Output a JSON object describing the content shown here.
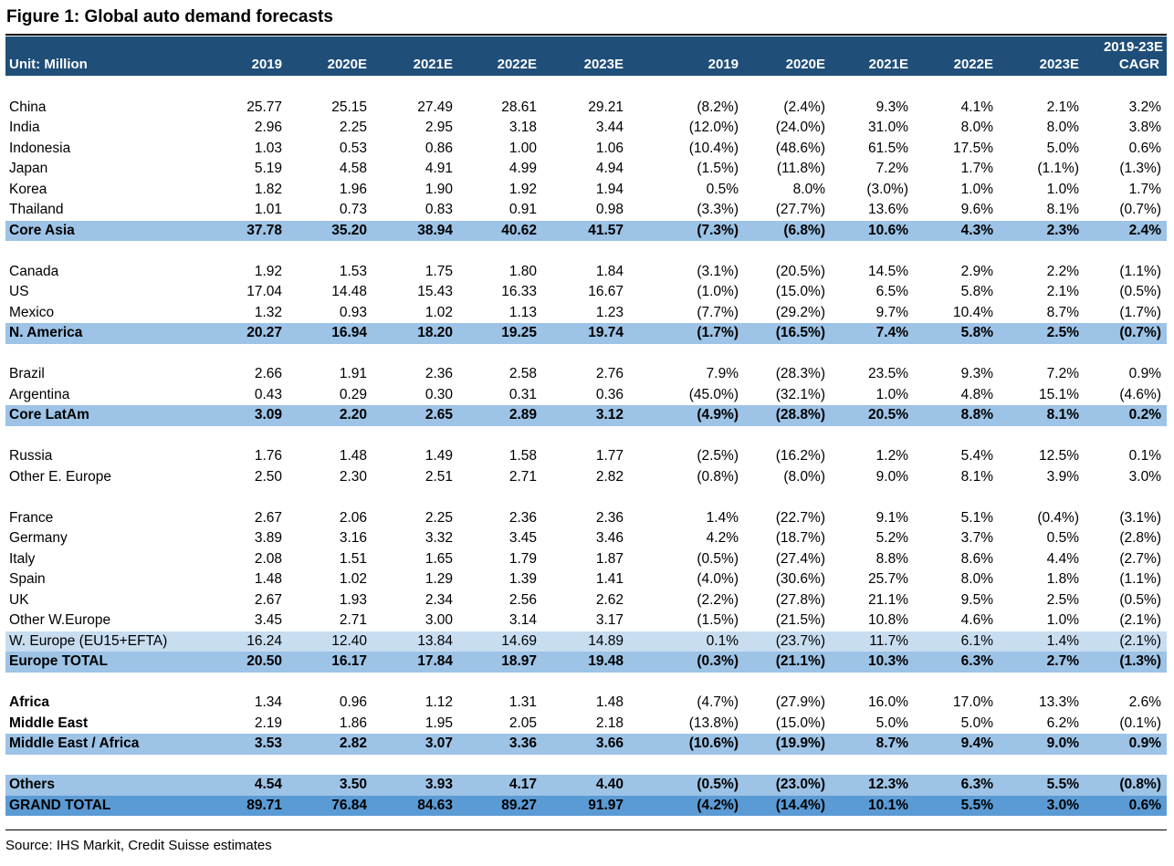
{
  "title": "Figure 1: Global auto demand forecasts",
  "header": {
    "unit_label": "Unit: Million",
    "columns": [
      "2019",
      "2020E",
      "2021E",
      "2022E",
      "2023E",
      "2019",
      "2020E",
      "2021E",
      "2022E",
      "2023E"
    ],
    "cagr_line1": "2019-23E",
    "cagr_line2": "CAGR"
  },
  "rows": [
    {
      "kind": "spacer"
    },
    {
      "kind": "data",
      "name": "China",
      "values": [
        "25.77",
        "25.15",
        "27.49",
        "28.61",
        "29.21",
        "(8.2%)",
        "(2.4%)",
        "9.3%",
        "4.1%",
        "2.1%",
        "3.2%"
      ]
    },
    {
      "kind": "data",
      "name": "India",
      "values": [
        "2.96",
        "2.25",
        "2.95",
        "3.18",
        "3.44",
        "(12.0%)",
        "(24.0%)",
        "31.0%",
        "8.0%",
        "8.0%",
        "3.8%"
      ]
    },
    {
      "kind": "data",
      "name": "Indonesia",
      "values": [
        "1.03",
        "0.53",
        "0.86",
        "1.00",
        "1.06",
        "(10.4%)",
        "(48.6%)",
        "61.5%",
        "17.5%",
        "5.0%",
        "0.6%"
      ]
    },
    {
      "kind": "data",
      "name": "Japan",
      "values": [
        "5.19",
        "4.58",
        "4.91",
        "4.99",
        "4.94",
        "(1.5%)",
        "(11.8%)",
        "7.2%",
        "1.7%",
        "(1.1%)",
        "(1.3%)"
      ]
    },
    {
      "kind": "data",
      "name": "Korea",
      "values": [
        "1.82",
        "1.96",
        "1.90",
        "1.92",
        "1.94",
        "0.5%",
        "8.0%",
        "(3.0%)",
        "1.0%",
        "1.0%",
        "1.7%"
      ]
    },
    {
      "kind": "data",
      "name": "Thailand",
      "values": [
        "1.01",
        "0.73",
        "0.83",
        "0.91",
        "0.98",
        "(3.3%)",
        "(27.7%)",
        "13.6%",
        "9.6%",
        "8.1%",
        "(0.7%)"
      ]
    },
    {
      "kind": "total",
      "name": "Core Asia",
      "values": [
        "37.78",
        "35.20",
        "38.94",
        "40.62",
        "41.57",
        "(7.3%)",
        "(6.8%)",
        "10.6%",
        "4.3%",
        "2.3%",
        "2.4%"
      ]
    },
    {
      "kind": "spacer"
    },
    {
      "kind": "data",
      "name": "Canada",
      "values": [
        "1.92",
        "1.53",
        "1.75",
        "1.80",
        "1.84",
        "(3.1%)",
        "(20.5%)",
        "14.5%",
        "2.9%",
        "2.2%",
        "(1.1%)"
      ]
    },
    {
      "kind": "data",
      "name": "US",
      "values": [
        "17.04",
        "14.48",
        "15.43",
        "16.33",
        "16.67",
        "(1.0%)",
        "(15.0%)",
        "6.5%",
        "5.8%",
        "2.1%",
        "(0.5%)"
      ]
    },
    {
      "kind": "data",
      "name": "Mexico",
      "values": [
        "1.32",
        "0.93",
        "1.02",
        "1.13",
        "1.23",
        "(7.7%)",
        "(29.2%)",
        "9.7%",
        "10.4%",
        "8.7%",
        "(1.7%)"
      ]
    },
    {
      "kind": "total",
      "name": "N. America",
      "values": [
        "20.27",
        "16.94",
        "18.20",
        "19.25",
        "19.74",
        "(1.7%)",
        "(16.5%)",
        "7.4%",
        "5.8%",
        "2.5%",
        "(0.7%)"
      ]
    },
    {
      "kind": "spacer"
    },
    {
      "kind": "data",
      "name": "Brazil",
      "values": [
        "2.66",
        "1.91",
        "2.36",
        "2.58",
        "2.76",
        "7.9%",
        "(28.3%)",
        "23.5%",
        "9.3%",
        "7.2%",
        "0.9%"
      ]
    },
    {
      "kind": "data",
      "name": "Argentina",
      "values": [
        "0.43",
        "0.29",
        "0.30",
        "0.31",
        "0.36",
        "(45.0%)",
        "(32.1%)",
        "1.0%",
        "4.8%",
        "15.1%",
        "(4.6%)"
      ]
    },
    {
      "kind": "total",
      "name": "Core LatAm",
      "values": [
        "3.09",
        "2.20",
        "2.65",
        "2.89",
        "3.12",
        "(4.9%)",
        "(28.8%)",
        "20.5%",
        "8.8%",
        "8.1%",
        "0.2%"
      ]
    },
    {
      "kind": "spacer"
    },
    {
      "kind": "data",
      "name": "Russia",
      "values": [
        "1.76",
        "1.48",
        "1.49",
        "1.58",
        "1.77",
        "(2.5%)",
        "(16.2%)",
        "1.2%",
        "5.4%",
        "12.5%",
        "0.1%"
      ]
    },
    {
      "kind": "data",
      "name": "Other E. Europe",
      "values": [
        "2.50",
        "2.30",
        "2.51",
        "2.71",
        "2.82",
        "(0.8%)",
        "(8.0%)",
        "9.0%",
        "8.1%",
        "3.9%",
        "3.0%"
      ]
    },
    {
      "kind": "spacer"
    },
    {
      "kind": "data",
      "name": "France",
      "values": [
        "2.67",
        "2.06",
        "2.25",
        "2.36",
        "2.36",
        "1.4%",
        "(22.7%)",
        "9.1%",
        "5.1%",
        "(0.4%)",
        "(3.1%)"
      ]
    },
    {
      "kind": "data",
      "name": "Germany",
      "values": [
        "3.89",
        "3.16",
        "3.32",
        "3.45",
        "3.46",
        "4.2%",
        "(18.7%)",
        "5.2%",
        "3.7%",
        "0.5%",
        "(2.8%)"
      ]
    },
    {
      "kind": "data",
      "name": "Italy",
      "values": [
        "2.08",
        "1.51",
        "1.65",
        "1.79",
        "1.87",
        "(0.5%)",
        "(27.4%)",
        "8.8%",
        "8.6%",
        "4.4%",
        "(2.7%)"
      ]
    },
    {
      "kind": "data",
      "name": "Spain",
      "values": [
        "1.48",
        "1.02",
        "1.29",
        "1.39",
        "1.41",
        "(4.0%)",
        "(30.6%)",
        "25.7%",
        "8.0%",
        "1.8%",
        "(1.1%)"
      ]
    },
    {
      "kind": "data",
      "name": "UK",
      "values": [
        "2.67",
        "1.93",
        "2.34",
        "2.56",
        "2.62",
        "(2.2%)",
        "(27.8%)",
        "21.1%",
        "9.5%",
        "2.5%",
        "(0.5%)"
      ]
    },
    {
      "kind": "data",
      "name": "Other W.Europe",
      "values": [
        "3.45",
        "2.71",
        "3.00",
        "3.14",
        "3.17",
        "(1.5%)",
        "(21.5%)",
        "10.8%",
        "4.6%",
        "1.0%",
        "(2.1%)"
      ]
    },
    {
      "kind": "sub",
      "name": "W. Europe (EU15+EFTA)",
      "values": [
        "16.24",
        "12.40",
        "13.84",
        "14.69",
        "14.89",
        "0.1%",
        "(23.7%)",
        "11.7%",
        "6.1%",
        "1.4%",
        "(2.1%)"
      ]
    },
    {
      "kind": "total",
      "name": "Europe TOTAL",
      "values": [
        "20.50",
        "16.17",
        "17.84",
        "18.97",
        "19.48",
        "(0.3%)",
        "(21.1%)",
        "10.3%",
        "6.3%",
        "2.7%",
        "(1.3%)"
      ]
    },
    {
      "kind": "spacer"
    },
    {
      "kind": "boldname",
      "name": "Africa",
      "values": [
        "1.34",
        "0.96",
        "1.12",
        "1.31",
        "1.48",
        "(4.7%)",
        "(27.9%)",
        "16.0%",
        "17.0%",
        "13.3%",
        "2.6%"
      ]
    },
    {
      "kind": "boldname",
      "name": "Middle East",
      "values": [
        "2.19",
        "1.86",
        "1.95",
        "2.05",
        "2.18",
        "(13.8%)",
        "(15.0%)",
        "5.0%",
        "5.0%",
        "6.2%",
        "(0.1%)"
      ]
    },
    {
      "kind": "total",
      "name": "Middle East / Africa",
      "values": [
        "3.53",
        "2.82",
        "3.07",
        "3.36",
        "3.66",
        "(10.6%)",
        "(19.9%)",
        "8.7%",
        "9.4%",
        "9.0%",
        "0.9%"
      ]
    },
    {
      "kind": "spacer"
    },
    {
      "kind": "total",
      "name": "Others",
      "values": [
        "4.54",
        "3.50",
        "3.93",
        "4.17",
        "4.40",
        "(0.5%)",
        "(23.0%)",
        "12.3%",
        "6.3%",
        "5.5%",
        "(0.8%)"
      ]
    },
    {
      "kind": "grand",
      "name": "GRAND TOTAL",
      "values": [
        "89.71",
        "76.84",
        "84.63",
        "89.27",
        "91.97",
        "(4.2%)",
        "(14.4%)",
        "10.1%",
        "5.5%",
        "3.0%",
        "0.6%"
      ]
    }
  ],
  "source": "Source: IHS Markit, Credit Suisse estimates"
}
